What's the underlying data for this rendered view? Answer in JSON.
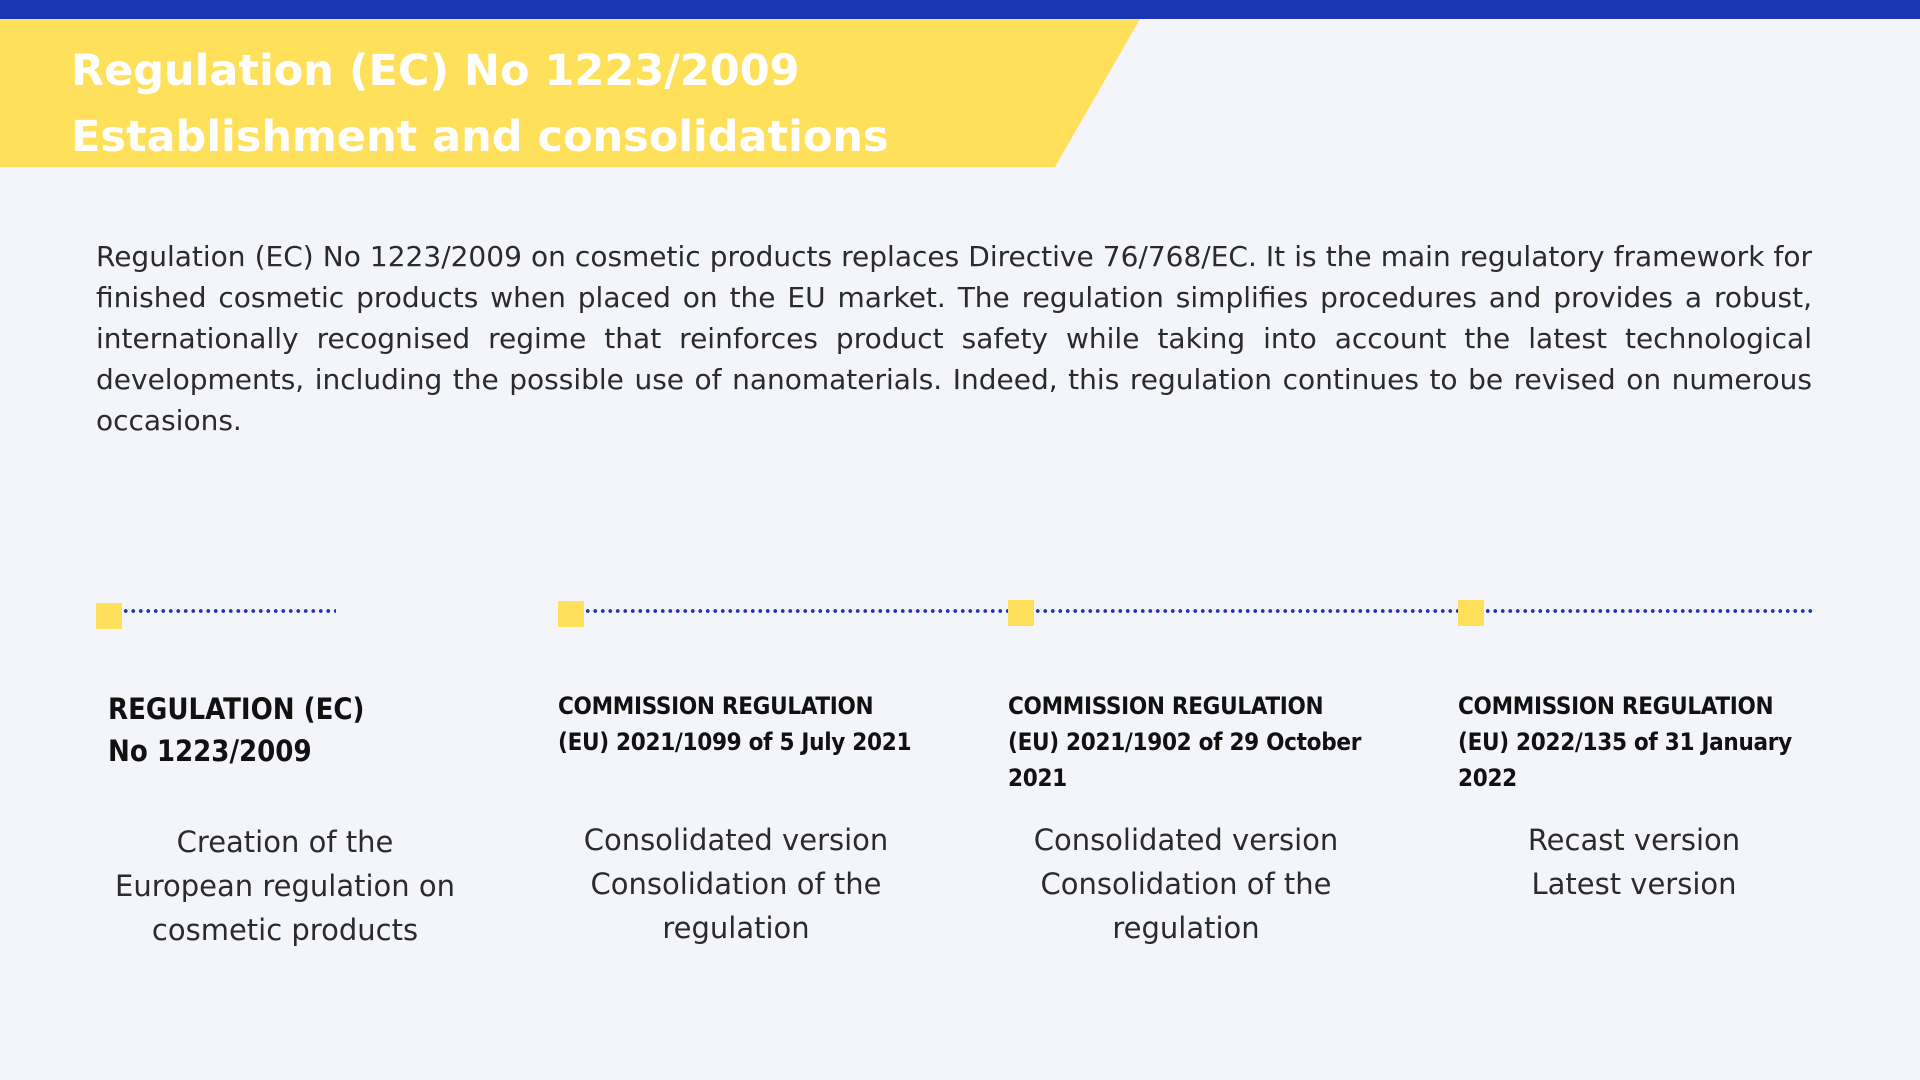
{
  "header": {
    "title_line1": "Regulation (EC) No 1223/2009",
    "title_line2": "Establishment and consolidations",
    "colors": {
      "top_bar": "#1936b3",
      "banner": "#ffe05b",
      "title_text": "#ffffff"
    }
  },
  "intro": {
    "text": "Regulation (EC) No 1223/2009 on cosmetic products replaces Directive 76/768/EC. It is the main regulatory framework for finished cosmetic products when placed on the EU market. The regulation simplifies procedures and provides a robust, internationally recognised regime that reinforces product safety while taking into account the latest technological developments, including the possible use of nanomaterials. Indeed, this regulation continues to be revised on numerous occasions."
  },
  "timeline": {
    "colors": {
      "marker": "#ffe05b",
      "line": "#1936b3"
    },
    "events": [
      {
        "title": "REGULATION (EC) No 1223/2009",
        "title_lines": [
          "REGULATION (EC)",
          "No 1223/2009"
        ],
        "desc_lines": [
          "Creation of the",
          "European regulation on",
          "cosmetic products"
        ]
      },
      {
        "title": "COMMISSION REGULATION (EU) 2021/1099 of 5 July 2021",
        "title_lines": [
          "COMMISSION REGULATION",
          "(EU) 2021/1099 of 5 July 2021"
        ],
        "desc_lines": [
          "Consolidated version",
          "Consolidation of the",
          "regulation"
        ]
      },
      {
        "title": "COMMISSION REGULATION (EU) 2021/1902 of 29 October 2021",
        "title_lines": [
          "COMMISSION REGULATION",
          "(EU) 2021/1902 of 29 October",
          "2021"
        ],
        "desc_lines": [
          "Consolidated version",
          "Consolidation of the",
          "regulation"
        ]
      },
      {
        "title": "COMMISSION REGULATION (EU) 2022/135 of 31 January 2022",
        "title_lines": [
          "COMMISSION REGULATION",
          "(EU) 2022/135 of 31 January",
          "2022"
        ],
        "desc_lines": [
          "Recast version",
          "Latest version"
        ]
      }
    ]
  }
}
